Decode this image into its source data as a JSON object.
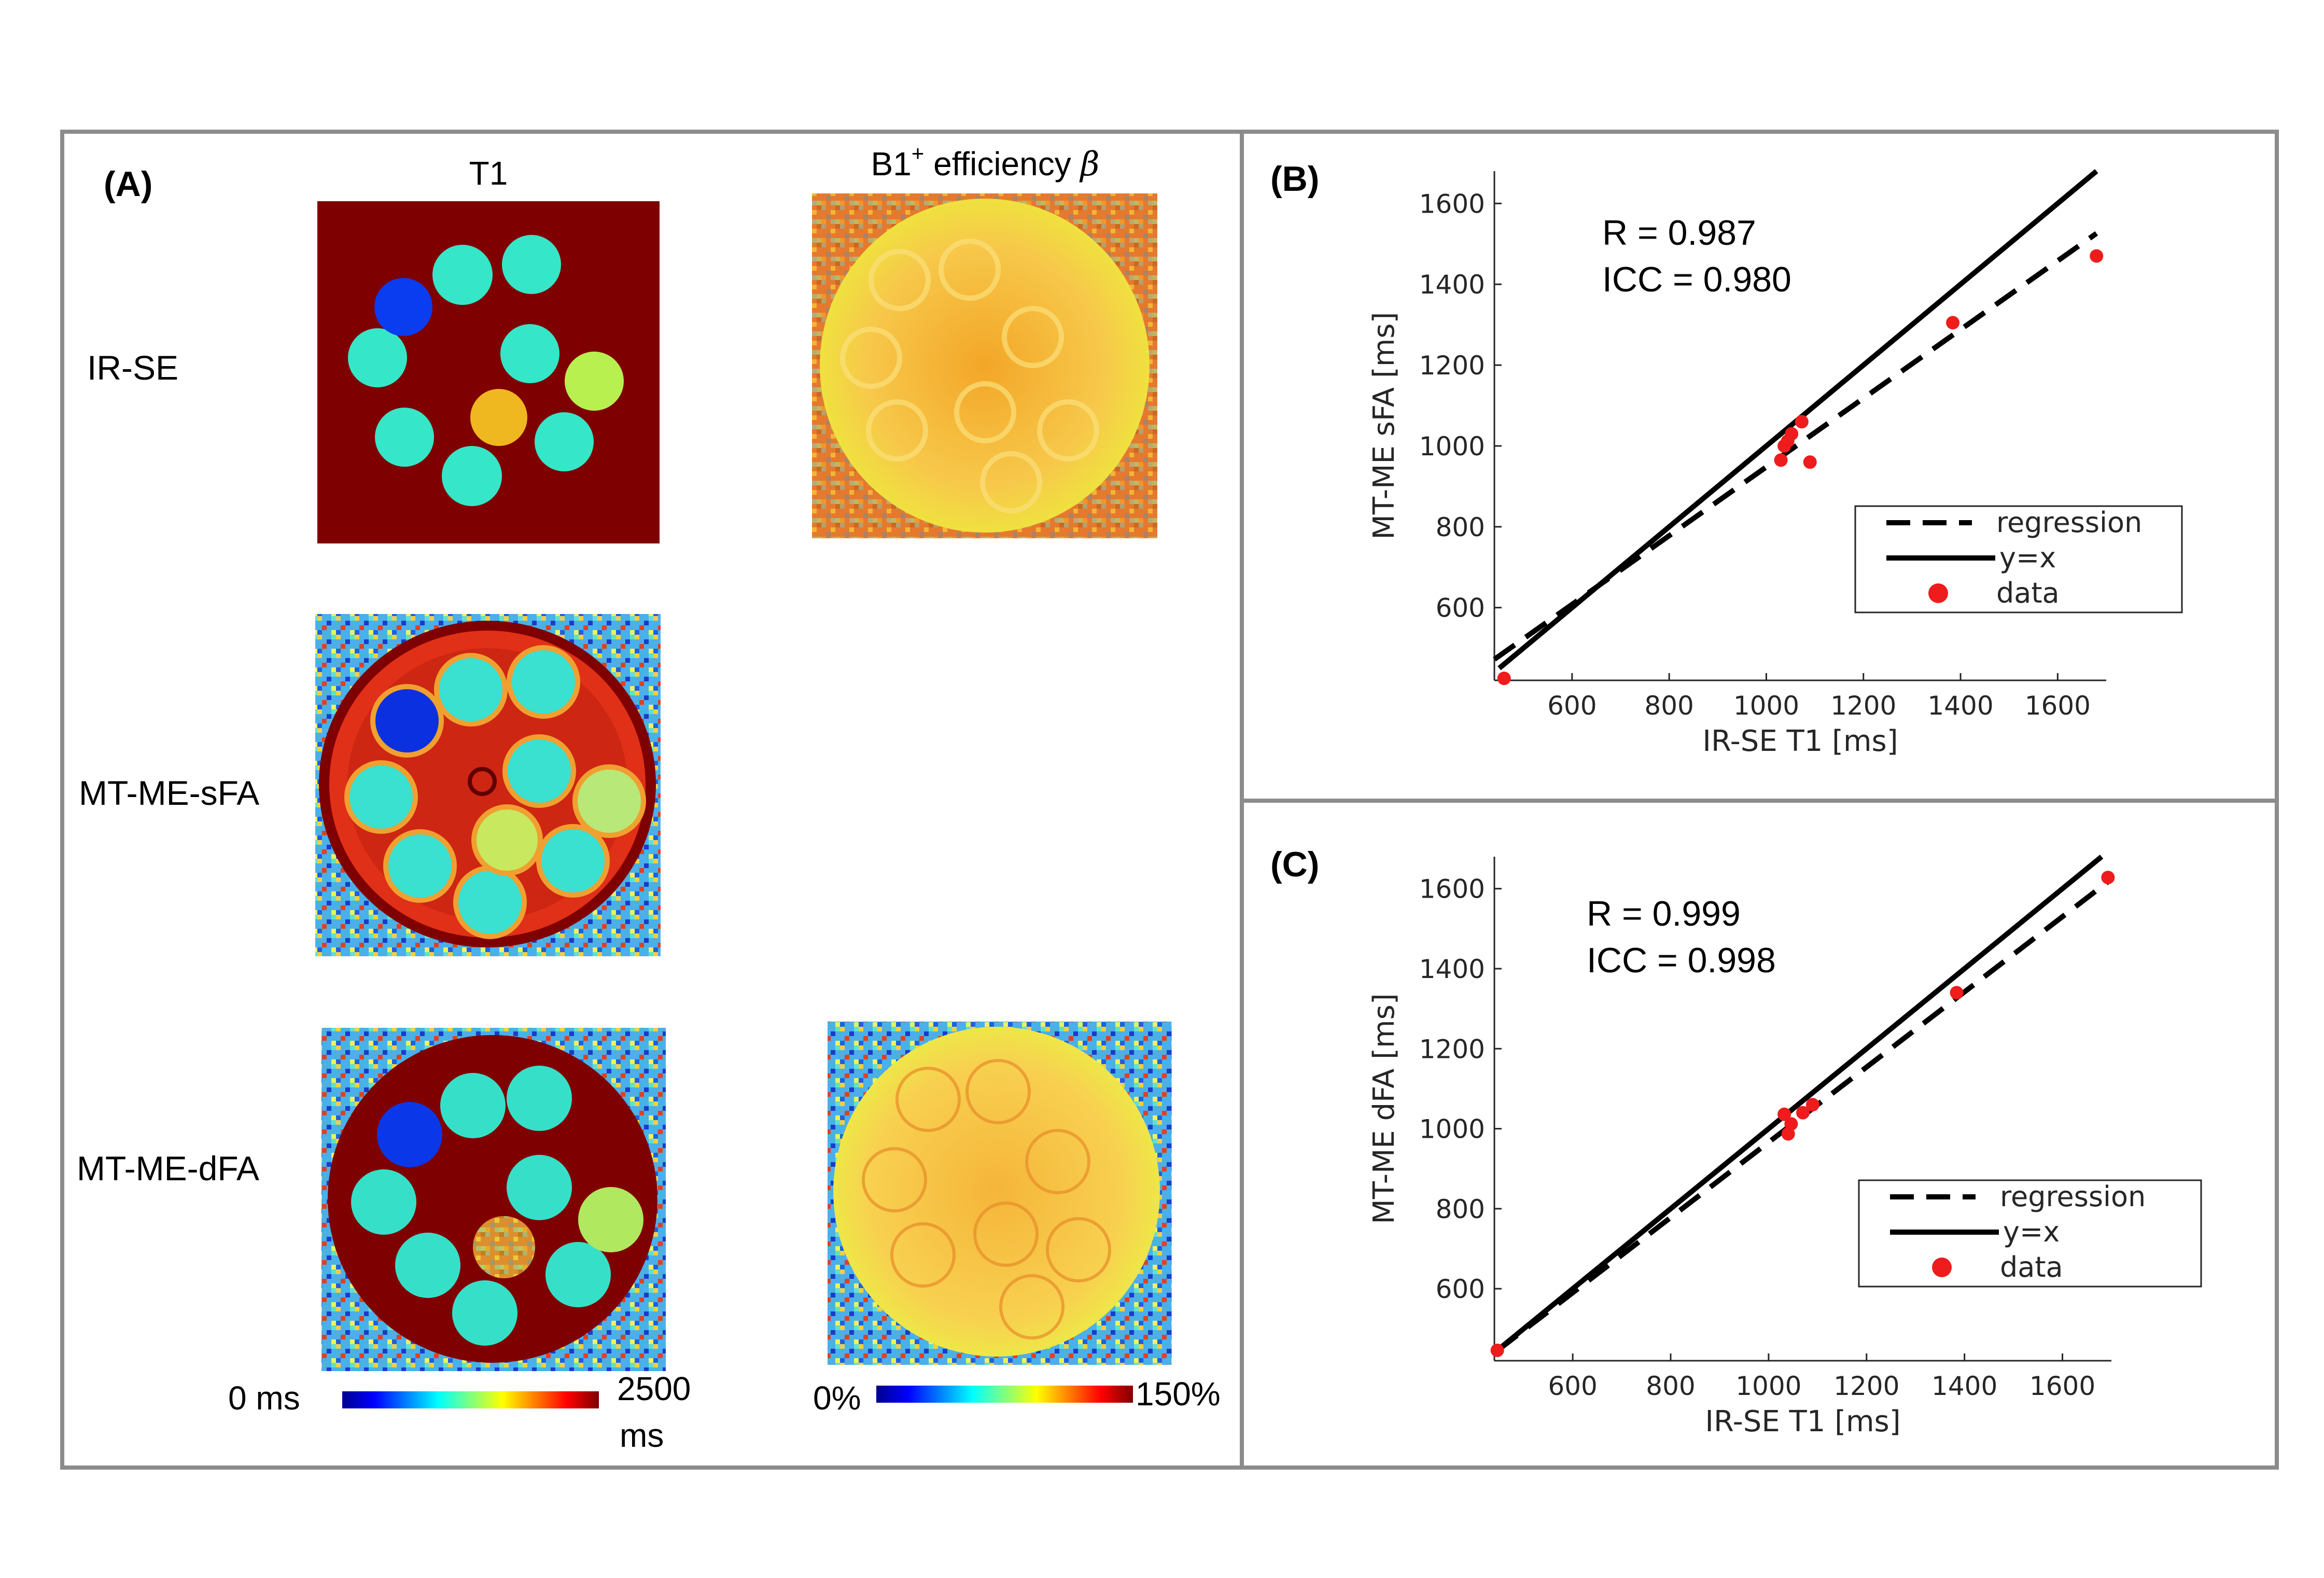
{
  "panel_a": {
    "label": "(A)",
    "col_t1": "T1",
    "col_b1": "B1",
    "col_b1_sup": "+",
    "col_b1_rest": " efficiency ",
    "col_b1_beta": "β",
    "row_irse": "IR-SE",
    "row_sfa": "MT-ME-sFA",
    "row_dfa": "MT-ME-dFA",
    "t1_cbar_min": "0 ms",
    "t1_cbar_max": "2500",
    "t1_cbar_max_unit": "ms",
    "b1_cbar_min": "0%",
    "b1_cbar_max": "150%"
  },
  "colors": {
    "frame": "#8c8c8c",
    "phantom_bg": "#7f0000",
    "vial_cyan": "#36e6c8",
    "vial_blue": "#0a3cf0",
    "vial_orange": "#f0c21a",
    "vial_green": "#b8f050",
    "b1_base": "#f7c84a",
    "b1_center": "#f3a628",
    "data_red": "#ee1c1c"
  },
  "chart_data": [
    {
      "type": "scatter",
      "panel_label": "(B)",
      "xlabel": "IR-SE T1 [ms]",
      "ylabel": "MT-ME sFA [ms]",
      "xlim": [
        440,
        1700
      ],
      "ylim": [
        420,
        1680
      ],
      "xticks": [
        600,
        800,
        1000,
        1200,
        1400,
        1600
      ],
      "yticks": [
        600,
        800,
        1000,
        1200,
        1400,
        1600
      ],
      "stats": [
        "R = 0.987",
        "ICC = 0.980"
      ],
      "legend": [
        "regression",
        "y=x",
        "data"
      ],
      "legend_position": "bottom-right",
      "x": [
        460,
        1030,
        1037,
        1044,
        1052,
        1073,
        1090,
        1384,
        1680
      ],
      "y": [
        425,
        965,
        1000,
        1012,
        1030,
        1060,
        960,
        1305,
        1470
      ],
      "regression": {
        "slope": 0.85,
        "intercept": 98,
        "x_range": [
          440,
          1680
        ]
      },
      "identity_x_range": [
        450,
        1680
      ]
    },
    {
      "type": "scatter",
      "panel_label": "(C)",
      "xlabel": "IR-SE T1 [ms]",
      "ylabel": "MT-ME dFA [ms]",
      "xlim": [
        440,
        1700
      ],
      "ylim": [
        420,
        1680
      ],
      "xticks": [
        600,
        800,
        1000,
        1200,
        1400,
        1600
      ],
      "yticks": [
        600,
        800,
        1000,
        1200,
        1400,
        1600
      ],
      "stats": [
        "R = 0.999",
        "ICC = 0.998"
      ],
      "legend": [
        "regression",
        "y=x",
        "data"
      ],
      "legend_position": "bottom-right",
      "x": [
        446,
        1032,
        1040,
        1046,
        1070,
        1090,
        1384,
        1693
      ],
      "y": [
        446,
        1036,
        987,
        1012,
        1040,
        1060,
        1340,
        1628
      ],
      "regression": {
        "slope": 0.94,
        "intercept": 26,
        "x_range": [
          446,
          1693
        ]
      },
      "identity_x_range": [
        446,
        1680
      ]
    }
  ]
}
